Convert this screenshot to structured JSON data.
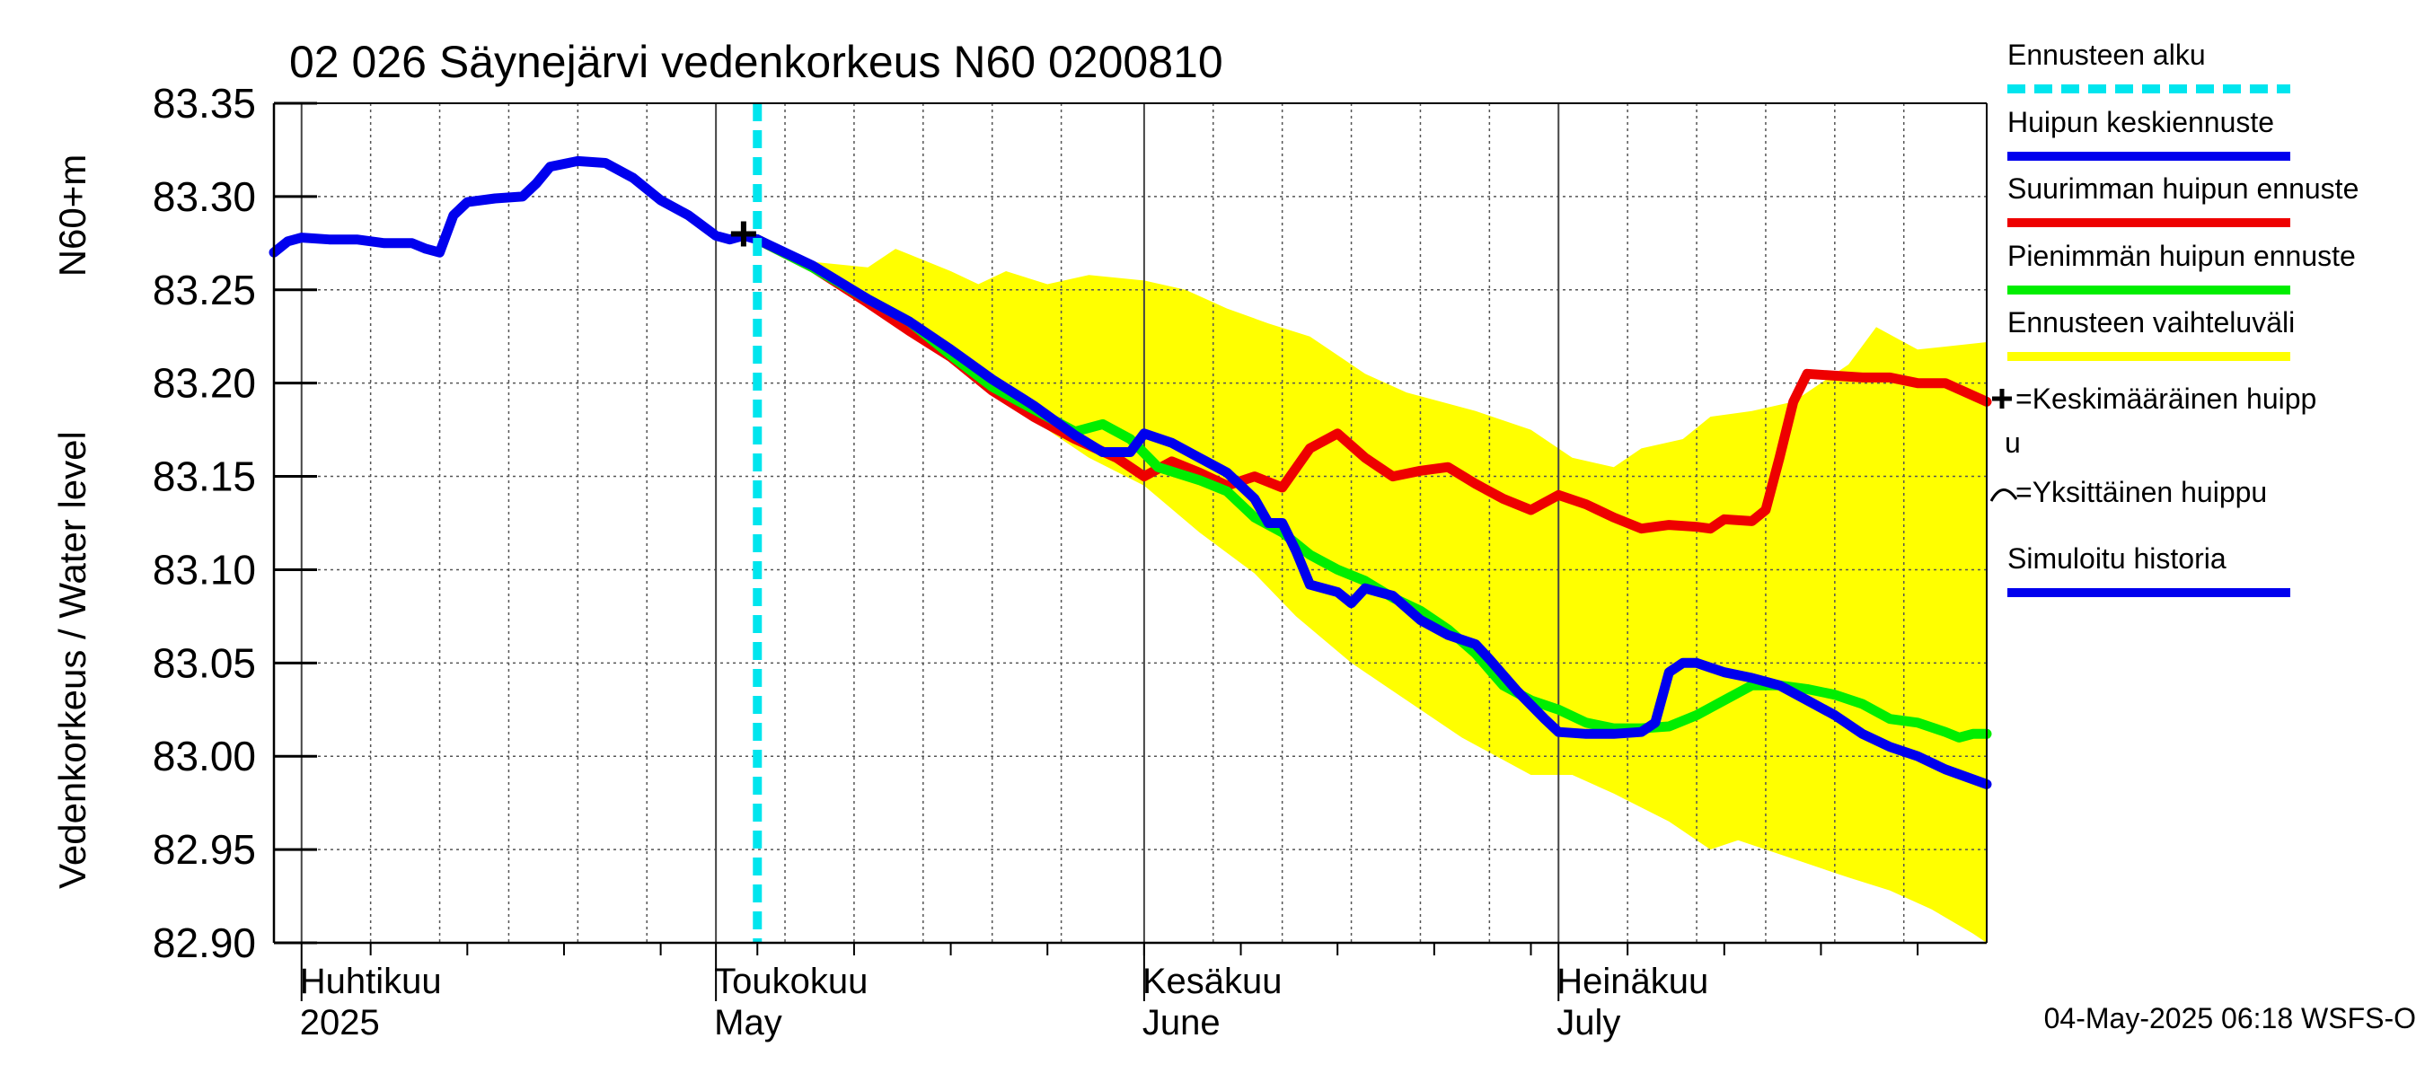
{
  "chart_data": {
    "type": "line",
    "title": "02 026 Säynejärvi vedenkorkeus N60 0200810",
    "ylabel_main": "Vedenkorkeus / Water level",
    "ylabel_unit": "N60+m",
    "ylim": [
      82.9,
      83.35
    ],
    "yticks": [
      "83.35",
      "83.30",
      "83.25",
      "83.20",
      "83.15",
      "83.10",
      "83.05",
      "83.00",
      "82.95",
      "82.90"
    ],
    "x_start": "2025-03-30",
    "x_end": "2025-08-01",
    "forecast_start": "2025-05-04",
    "month_ticks": [
      {
        "date": "2025-04-01",
        "line1": "Huhtikuu",
        "line2": "2025"
      },
      {
        "date": "2025-05-01",
        "line1": "Toukokuu",
        "line2": "May"
      },
      {
        "date": "2025-06-01",
        "line1": "Kesäkuu",
        "line2": "June"
      },
      {
        "date": "2025-07-01",
        "line1": "Heinäkuu",
        "line2": "July"
      }
    ],
    "grid": true,
    "legend_position": "right",
    "footer": "04-May-2025 06:18 WSFS-O",
    "legend": [
      {
        "label": "Ennusteen alku",
        "color": "#00e5ee",
        "style": "dashed"
      },
      {
        "label": "Huipun keskiennuste",
        "color": "#0000ee",
        "style": "line"
      },
      {
        "label": "Suurimman huipun ennuste",
        "color": "#ee0000",
        "style": "line"
      },
      {
        "label": "Pienimmän huipun ennuste",
        "color": "#00ee00",
        "style": "line"
      },
      {
        "label": "Ennusteen vaihteluväli",
        "color": "#ffff00",
        "style": "line"
      },
      {
        "label": "=Keskimääräinen huipp",
        "label2": "u",
        "color": "#000000",
        "style": "plus"
      },
      {
        "label": "=Yksittäinen huippu",
        "color": "#000000",
        "style": "arc"
      },
      {
        "label": "Simuloitu historia",
        "color": "#0000ee",
        "style": "line"
      }
    ],
    "band": {
      "name": "Ennusteen vaihteluväli",
      "color": "#ffff00",
      "upper": [
        [
          "2025-05-03",
          83.278
        ],
        [
          "2025-05-08",
          83.265
        ],
        [
          "2025-05-12",
          83.262
        ],
        [
          "2025-05-14",
          83.272
        ],
        [
          "2025-05-18",
          83.26
        ],
        [
          "2025-05-20",
          83.253
        ],
        [
          "2025-05-22",
          83.26
        ],
        [
          "2025-05-25",
          83.253
        ],
        [
          "2025-05-28",
          83.258
        ],
        [
          "2025-06-01",
          83.255
        ],
        [
          "2025-06-04",
          83.25
        ],
        [
          "2025-06-07",
          83.24
        ],
        [
          "2025-06-10",
          83.232
        ],
        [
          "2025-06-13",
          83.225
        ],
        [
          "2025-06-17",
          83.205
        ],
        [
          "2025-06-20",
          83.195
        ],
        [
          "2025-06-25",
          83.185
        ],
        [
          "2025-06-29",
          83.175
        ],
        [
          "2025-07-02",
          83.16
        ],
        [
          "2025-07-05",
          83.155
        ],
        [
          "2025-07-07",
          83.165
        ],
        [
          "2025-07-10",
          83.17
        ],
        [
          "2025-07-12",
          83.182
        ],
        [
          "2025-07-15",
          83.185
        ],
        [
          "2025-07-18",
          83.19
        ],
        [
          "2025-07-22",
          83.21
        ],
        [
          "2025-07-24",
          83.23
        ],
        [
          "2025-07-27",
          83.218
        ],
        [
          "2025-08-01",
          83.222
        ]
      ],
      "lower": [
        [
          "2025-05-03",
          83.278
        ],
        [
          "2025-05-07",
          83.265
        ],
        [
          "2025-05-12",
          83.245
        ],
        [
          "2025-05-16",
          83.225
        ],
        [
          "2025-05-20",
          83.2
        ],
        [
          "2025-05-24",
          83.18
        ],
        [
          "2025-05-28",
          83.16
        ],
        [
          "2025-06-01",
          83.145
        ],
        [
          "2025-06-05",
          83.12
        ],
        [
          "2025-06-09",
          83.098
        ],
        [
          "2025-06-12",
          83.075
        ],
        [
          "2025-06-16",
          83.05
        ],
        [
          "2025-06-20",
          83.03
        ],
        [
          "2025-06-24",
          83.01
        ],
        [
          "2025-06-29",
          82.99
        ],
        [
          "2025-07-02",
          82.99
        ],
        [
          "2025-07-05",
          82.98
        ],
        [
          "2025-07-09",
          82.965
        ],
        [
          "2025-07-12",
          82.95
        ],
        [
          "2025-07-14",
          82.955
        ],
        [
          "2025-07-18",
          82.945
        ],
        [
          "2025-07-22",
          82.935
        ],
        [
          "2025-07-25",
          82.928
        ],
        [
          "2025-07-28",
          82.918
        ],
        [
          "2025-07-31",
          82.905
        ],
        [
          "2025-08-01",
          82.9
        ]
      ]
    },
    "series": [
      {
        "name": "Suurimman huipun ennuste",
        "color": "#ee0000",
        "points": [
          [
            "2025-05-04",
            83.277
          ],
          [
            "2025-05-08",
            83.262
          ],
          [
            "2025-05-12",
            83.243
          ],
          [
            "2025-05-15",
            83.228
          ],
          [
            "2025-05-18",
            83.214
          ],
          [
            "2025-05-21",
            83.196
          ],
          [
            "2025-05-24",
            83.182
          ],
          [
            "2025-05-27",
            83.17
          ],
          [
            "2025-05-30",
            83.16
          ],
          [
            "2025-06-01",
            83.15
          ],
          [
            "2025-06-03",
            83.158
          ],
          [
            "2025-06-05",
            83.152
          ],
          [
            "2025-06-07",
            83.145
          ],
          [
            "2025-06-09",
            83.15
          ],
          [
            "2025-06-11",
            83.144
          ],
          [
            "2025-06-13",
            83.165
          ],
          [
            "2025-06-15",
            83.173
          ],
          [
            "2025-06-17",
            83.16
          ],
          [
            "2025-06-19",
            83.15
          ],
          [
            "2025-06-21",
            83.153
          ],
          [
            "2025-06-23",
            83.155
          ],
          [
            "2025-06-25",
            83.146
          ],
          [
            "2025-06-27",
            83.138
          ],
          [
            "2025-06-29",
            83.132
          ],
          [
            "2025-07-01",
            83.14
          ],
          [
            "2025-07-03",
            83.135
          ],
          [
            "2025-07-05",
            83.128
          ],
          [
            "2025-07-07",
            83.122
          ],
          [
            "2025-07-09",
            83.124
          ],
          [
            "2025-07-11",
            83.123
          ],
          [
            "2025-07-12",
            83.122
          ],
          [
            "2025-07-13",
            83.127
          ],
          [
            "2025-07-15",
            83.126
          ],
          [
            "2025-07-16",
            83.132
          ],
          [
            "2025-07-17",
            83.16
          ],
          [
            "2025-07-18",
            83.19
          ],
          [
            "2025-07-19",
            83.205
          ],
          [
            "2025-07-21",
            83.204
          ],
          [
            "2025-07-23",
            83.203
          ],
          [
            "2025-07-25",
            83.203
          ],
          [
            "2025-07-27",
            83.2
          ],
          [
            "2025-07-29",
            83.2
          ],
          [
            "2025-08-01",
            83.19
          ]
        ]
      },
      {
        "name": "Pienimmän huipun ennuste",
        "color": "#00ee00",
        "points": [
          [
            "2025-05-04",
            83.277
          ],
          [
            "2025-05-08",
            83.262
          ],
          [
            "2025-05-12",
            83.245
          ],
          [
            "2025-05-15",
            83.233
          ],
          [
            "2025-05-18",
            83.215
          ],
          [
            "2025-05-21",
            83.198
          ],
          [
            "2025-05-24",
            83.186
          ],
          [
            "2025-05-27",
            83.174
          ],
          [
            "2025-05-29",
            83.178
          ],
          [
            "2025-05-31",
            83.17
          ],
          [
            "2025-06-02",
            83.155
          ],
          [
            "2025-06-05",
            83.148
          ],
          [
            "2025-06-07",
            83.142
          ],
          [
            "2025-06-09",
            83.128
          ],
          [
            "2025-06-11",
            83.12
          ],
          [
            "2025-06-13",
            83.108
          ],
          [
            "2025-06-15",
            83.1
          ],
          [
            "2025-06-17",
            83.094
          ],
          [
            "2025-06-19",
            83.085
          ],
          [
            "2025-06-21",
            83.078
          ],
          [
            "2025-06-23",
            83.068
          ],
          [
            "2025-06-25",
            83.055
          ],
          [
            "2025-06-27",
            83.038
          ],
          [
            "2025-06-29",
            83.03
          ],
          [
            "2025-07-01",
            83.025
          ],
          [
            "2025-07-03",
            83.018
          ],
          [
            "2025-07-05",
            83.015
          ],
          [
            "2025-07-07",
            83.015
          ],
          [
            "2025-07-09",
            83.016
          ],
          [
            "2025-07-11",
            83.022
          ],
          [
            "2025-07-13",
            83.03
          ],
          [
            "2025-07-15",
            83.038
          ],
          [
            "2025-07-17",
            83.038
          ],
          [
            "2025-07-19",
            83.036
          ],
          [
            "2025-07-21",
            83.033
          ],
          [
            "2025-07-23",
            83.028
          ],
          [
            "2025-07-25",
            83.02
          ],
          [
            "2025-07-27",
            83.018
          ],
          [
            "2025-07-29",
            83.013
          ],
          [
            "2025-07-30",
            83.01
          ],
          [
            "2025-07-31",
            83.012
          ],
          [
            "2025-08-01",
            83.012
          ]
        ]
      },
      {
        "name": "Huipun keskiennuste",
        "color": "#0000ee",
        "points": [
          [
            "2025-05-04",
            83.277
          ],
          [
            "2025-05-08",
            83.263
          ],
          [
            "2025-05-12",
            83.245
          ],
          [
            "2025-05-15",
            83.233
          ],
          [
            "2025-05-18",
            83.218
          ],
          [
            "2025-05-21",
            83.202
          ],
          [
            "2025-05-24",
            83.188
          ],
          [
            "2025-05-27",
            83.172
          ],
          [
            "2025-05-29",
            83.163
          ],
          [
            "2025-05-31",
            83.163
          ],
          [
            "2025-06-01",
            83.173
          ],
          [
            "2025-06-03",
            83.168
          ],
          [
            "2025-06-05",
            83.16
          ],
          [
            "2025-06-07",
            83.152
          ],
          [
            "2025-06-09",
            83.138
          ],
          [
            "2025-06-10",
            83.125
          ],
          [
            "2025-06-11",
            83.125
          ],
          [
            "2025-06-12",
            83.11
          ],
          [
            "2025-06-13",
            83.092
          ],
          [
            "2025-06-15",
            83.088
          ],
          [
            "2025-06-16",
            83.082
          ],
          [
            "2025-06-17",
            83.09
          ],
          [
            "2025-06-18",
            83.088
          ],
          [
            "2025-06-19",
            83.086
          ],
          [
            "2025-06-21",
            83.073
          ],
          [
            "2025-06-23",
            83.065
          ],
          [
            "2025-06-25",
            83.06
          ],
          [
            "2025-06-26",
            83.052
          ],
          [
            "2025-06-28",
            83.035
          ],
          [
            "2025-06-30",
            83.02
          ],
          [
            "2025-07-01",
            83.013
          ],
          [
            "2025-07-03",
            83.012
          ],
          [
            "2025-07-05",
            83.012
          ],
          [
            "2025-07-07",
            83.013
          ],
          [
            "2025-07-08",
            83.018
          ],
          [
            "2025-07-09",
            83.045
          ],
          [
            "2025-07-10",
            83.05
          ],
          [
            "2025-07-11",
            83.05
          ],
          [
            "2025-07-13",
            83.045
          ],
          [
            "2025-07-15",
            83.042
          ],
          [
            "2025-07-17",
            83.038
          ],
          [
            "2025-07-19",
            83.03
          ],
          [
            "2025-07-21",
            83.022
          ],
          [
            "2025-07-23",
            83.012
          ],
          [
            "2025-07-25",
            83.005
          ],
          [
            "2025-07-27",
            83.0
          ],
          [
            "2025-07-29",
            82.993
          ],
          [
            "2025-08-01",
            82.985
          ]
        ]
      },
      {
        "name": "Simuloitu historia",
        "color": "#0000ee",
        "points": [
          [
            "2025-03-30",
            83.27
          ],
          [
            "2025-03-31",
            83.276
          ],
          [
            "2025-04-01",
            83.278
          ],
          [
            "2025-04-03",
            83.277
          ],
          [
            "2025-04-05",
            83.277
          ],
          [
            "2025-04-07",
            83.275
          ],
          [
            "2025-04-09",
            83.275
          ],
          [
            "2025-04-10",
            83.272
          ],
          [
            "2025-04-11",
            83.27
          ],
          [
            "2025-04-12",
            83.29
          ],
          [
            "2025-04-13",
            83.297
          ],
          [
            "2025-04-15",
            83.299
          ],
          [
            "2025-04-17",
            83.3
          ],
          [
            "2025-04-18",
            83.307
          ],
          [
            "2025-04-19",
            83.316
          ],
          [
            "2025-04-21",
            83.319
          ],
          [
            "2025-04-23",
            83.318
          ],
          [
            "2025-04-25",
            83.31
          ],
          [
            "2025-04-27",
            83.298
          ],
          [
            "2025-04-29",
            83.29
          ],
          [
            "2025-05-01",
            83.279
          ],
          [
            "2025-05-02",
            83.277
          ],
          [
            "2025-05-03",
            83.279
          ],
          [
            "2025-05-04",
            83.277
          ]
        ]
      }
    ],
    "peak_marker": {
      "date": "2025-05-03",
      "value": 83.28,
      "label": "Keskimääräinen huippu"
    }
  }
}
